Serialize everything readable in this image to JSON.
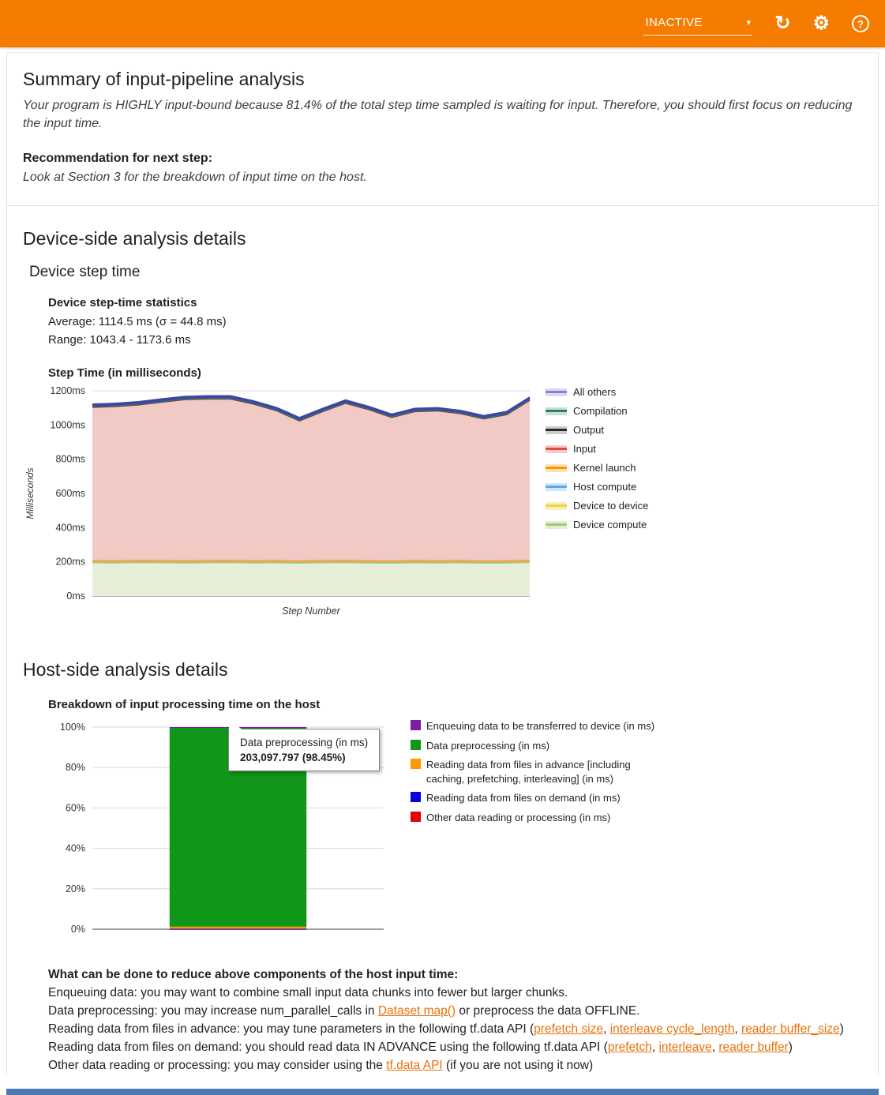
{
  "header": {
    "status_label": "INACTIVE",
    "caret_glyph": "▾",
    "refresh_glyph": "↻",
    "settings_glyph": "⚙",
    "help_glyph": "?"
  },
  "summary": {
    "title": "Summary of input-pipeline analysis",
    "body": "Your program is HIGHLY input-bound because 81.4% of the total step time sampled is waiting for input. Therefore, you should first focus on reducing the input time.",
    "recommendation_label": "Recommendation for next step:",
    "recommendation": "Look at Section 3 for the breakdown of input time on the host."
  },
  "device": {
    "section_title": "Device-side analysis details",
    "card_title": "Device step time",
    "stats_heading": "Device step-time statistics",
    "stats_average": "Average: 1114.5 ms (σ = 44.8 ms)",
    "stats_range": "Range: 1043.4 - 1173.6 ms"
  },
  "host": {
    "section_title": "Host-side analysis details"
  },
  "advice": {
    "heading": "What can be done to reduce above components of the host input time:",
    "lines": [
      [
        {
          "t": "Enqueuing data: you may want to combine small input data chunks into fewer but larger chunks."
        }
      ],
      [
        {
          "t": "Data preprocessing: you may increase num_parallel_calls in "
        },
        {
          "t": "Dataset map()",
          "link": true
        },
        {
          "t": " or preprocess the data OFFLINE."
        }
      ],
      [
        {
          "t": "Reading data from files in advance: you may tune parameters in the following tf.data API ("
        },
        {
          "t": "prefetch size",
          "link": true
        },
        {
          "t": ", "
        },
        {
          "t": "interleave cycle_length",
          "link": true
        },
        {
          "t": ", "
        },
        {
          "t": "reader buffer_size",
          "link": true
        },
        {
          "t": ")"
        }
      ],
      [
        {
          "t": "Reading data from files on demand: you should read data IN ADVANCE using the following tf.data API ("
        },
        {
          "t": "prefetch",
          "link": true
        },
        {
          "t": ", "
        },
        {
          "t": "interleave",
          "link": true
        },
        {
          "t": ", "
        },
        {
          "t": "reader buffer",
          "link": true
        },
        {
          "t": ")"
        }
      ],
      [
        {
          "t": "Other data reading or processing: you may consider using the "
        },
        {
          "t": "tf.data API",
          "link": true
        },
        {
          "t": " (if you are not using it now)"
        }
      ]
    ]
  },
  "chart_data": [
    {
      "type": "area",
      "stacked": true,
      "title": "Step Time (in milliseconds)",
      "xlabel": "Step Number",
      "ylabel": "Milliseconds",
      "ylim": [
        0,
        1200
      ],
      "yticks": [
        "0ms",
        "200ms",
        "400ms",
        "600ms",
        "800ms",
        "1000ms",
        "1200ms"
      ],
      "grid": true,
      "legend_position": "right",
      "average_ms": 1114.5,
      "stddev_ms": 44.8,
      "range_ms": [
        1043.4,
        1173.6
      ],
      "series": [
        {
          "name": "Device compute",
          "color": "#a5c878",
          "fill": "#e6f0d8",
          "values": [
            196,
            195,
            197,
            196,
            195,
            196,
            197,
            195,
            196,
            194,
            196,
            197,
            195,
            194,
            196,
            195,
            196,
            194,
            195,
            197
          ]
        },
        {
          "name": "Device to device",
          "color": "#e6d800",
          "fill": "#e6d800",
          "const": 3
        },
        {
          "name": "Host compute",
          "color": "#7fb1e8",
          "fill": "#7fb1e8",
          "const": 2
        },
        {
          "name": "Kernel launch",
          "color": "#ff9900",
          "fill": "#ffb347",
          "const": 10
        },
        {
          "name": "Input",
          "color": "#cc4437",
          "fill": "#f1cac5",
          "values": [
            893,
            899,
            906,
            923,
            939,
            942,
            941,
            913,
            873,
            816,
            868,
            916,
            881,
            836,
            868,
            873,
            856,
            828,
            851,
            933
          ]
        },
        {
          "name": "Output",
          "color": "#3c3c3c",
          "fill": "#3c3c3c",
          "const": 2
        },
        {
          "name": "Compilation",
          "color": "#2f7d6d",
          "fill": "#2f7d6d",
          "const": 2
        },
        {
          "name": "All others",
          "color": "#3d46a5",
          "fill": "#3d46a5",
          "const": 12,
          "sw": 2.5
        }
      ],
      "legend": [
        {
          "label": "All others",
          "color": "#8b7ed8",
          "fill": "#dcd8f3"
        },
        {
          "label": "Compilation",
          "color": "#2f7d6d",
          "fill": "#c9e0da"
        },
        {
          "label": "Output",
          "color": "#2b2b2b",
          "fill": "#cccccc"
        },
        {
          "label": "Input",
          "color": "#e04a3f",
          "fill": "#f6cdc9"
        },
        {
          "label": "Kernel launch",
          "color": "#ff9800",
          "fill": "#ffe2b8"
        },
        {
          "label": "Host compute",
          "color": "#5da9e8",
          "fill": "#cfe5f8"
        },
        {
          "label": "Device to device",
          "color": "#e8d44d",
          "fill": "#f7f0bb"
        },
        {
          "label": "Device compute",
          "color": "#a5c878",
          "fill": "#e2efd2"
        }
      ]
    },
    {
      "type": "bar",
      "stacked": true,
      "percent": true,
      "title": "Breakdown of input processing time on the host",
      "ylim": [
        0,
        100
      ],
      "yticks": [
        "0%",
        "20%",
        "40%",
        "60%",
        "80%",
        "100%"
      ],
      "bar": {
        "segments_bottom_up": [
          {
            "name": "Other data reading or processing (in ms)",
            "color": "#e60000",
            "pct": 0.08
          },
          {
            "name": "Reading data from files on demand (in ms)",
            "color": "#0a00dd",
            "pct": 0.12
          },
          {
            "name": "Reading data from files in advance [including caching, prefetching, interleaving] (in ms)",
            "color": "#ff9900",
            "pct": 1.05
          },
          {
            "name": "Data preprocessing (in ms)",
            "color": "#109618",
            "pct": 98.45,
            "value_ms": 203097.797
          },
          {
            "name": "Enqueuing data to be transferred to device (in ms)",
            "color": "#7b1fa2",
            "pct": 0.3
          }
        ]
      },
      "legend": [
        {
          "label": "Enqueuing data to be transferred to device (in ms)",
          "color": "#7b1fa2"
        },
        {
          "label": "Data preprocessing (in ms)",
          "color": "#109618"
        },
        {
          "label": "Reading data from files in advance [including caching, prefetching, interleaving] (in ms)",
          "color": "#ff9900"
        },
        {
          "label": "Reading data from files on demand (in ms)",
          "color": "#0a00dd"
        },
        {
          "label": "Other data reading or processing (in ms)",
          "color": "#e60000"
        }
      ],
      "tooltip": {
        "title": "Data preprocessing (in ms)",
        "value": "203,097.797 (98.45%)"
      }
    }
  ]
}
